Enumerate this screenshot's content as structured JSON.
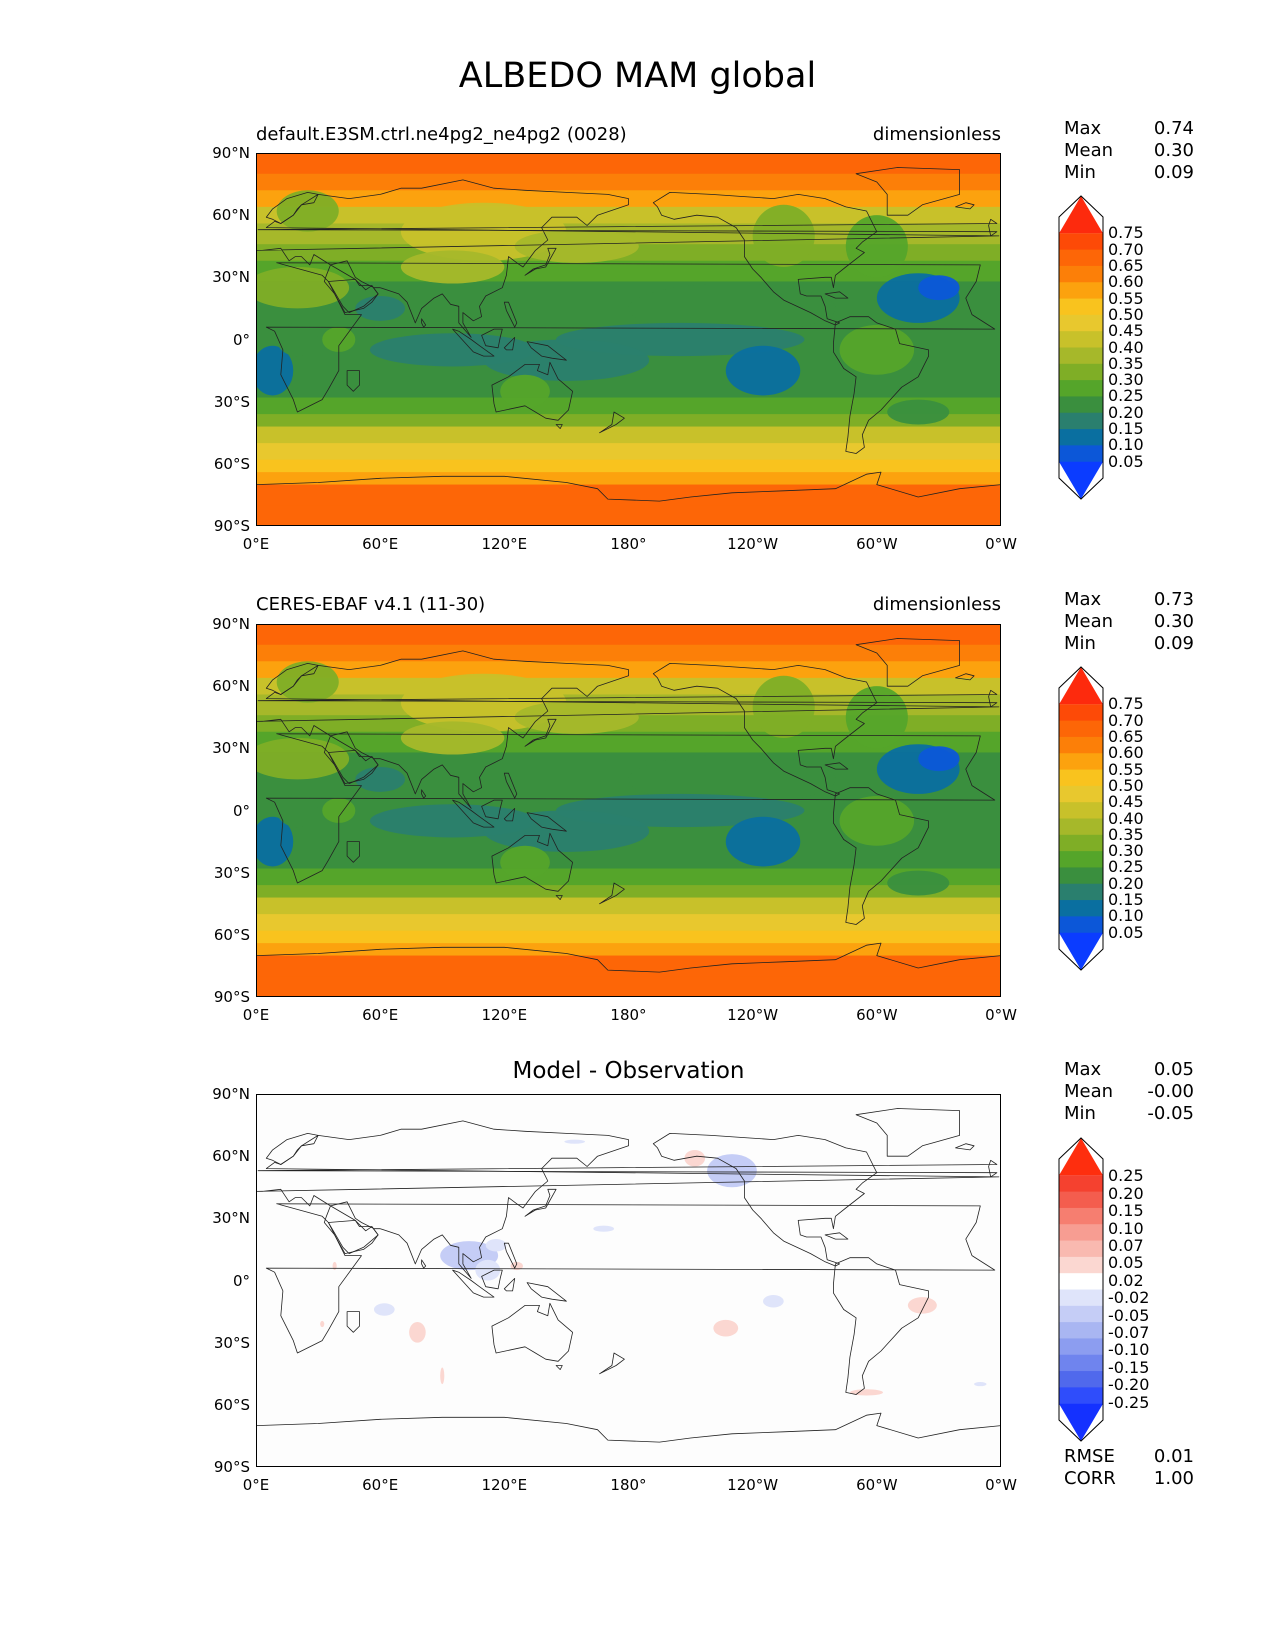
{
  "figure": {
    "title": "ALBEDO MAM global"
  },
  "axes": {
    "yticks": [
      "90°N",
      "60°N",
      "30°N",
      "0°",
      "30°S",
      "60°S",
      "90°S"
    ],
    "xticks": [
      "0°E",
      "60°E",
      "120°E",
      "180°",
      "120°W",
      "60°W",
      "0°W"
    ]
  },
  "panels": [
    {
      "left_title": "default.E3SM.ctrl.ne4pg2_ne4pg2 (0028)",
      "center_title": "",
      "right_title": "dimensionless",
      "stats": [
        {
          "label": "Max",
          "value": "0.74"
        },
        {
          "label": "Mean",
          "value": "0.30"
        },
        {
          "label": "Min",
          "value": "0.09"
        }
      ],
      "colorbar_ticks": [
        "0.75",
        "0.70",
        "0.65",
        "0.60",
        "0.55",
        "0.50",
        "0.45",
        "0.40",
        "0.35",
        "0.30",
        "0.25",
        "0.20",
        "0.15",
        "0.10",
        "0.05"
      ],
      "map_kind": "albedo"
    },
    {
      "left_title": "CERES-EBAF v4.1 (11-30)",
      "center_title": "",
      "right_title": "dimensionless",
      "stats": [
        {
          "label": "Max",
          "value": "0.73"
        },
        {
          "label": "Mean",
          "value": "0.30"
        },
        {
          "label": "Min",
          "value": "0.09"
        }
      ],
      "colorbar_ticks": [
        "0.75",
        "0.70",
        "0.65",
        "0.60",
        "0.55",
        "0.50",
        "0.45",
        "0.40",
        "0.35",
        "0.30",
        "0.25",
        "0.20",
        "0.15",
        "0.10",
        "0.05"
      ],
      "map_kind": "albedo"
    },
    {
      "left_title": "",
      "center_title": "Model - Observation",
      "right_title": "",
      "stats": [
        {
          "label": "Max",
          "value": "0.05"
        },
        {
          "label": "Mean",
          "value": "-0.00"
        },
        {
          "label": "Min",
          "value": "-0.05"
        }
      ],
      "colorbar_ticks": [
        "0.25",
        "0.20",
        "0.15",
        "0.10",
        "0.07",
        "0.05",
        "0.02",
        "-0.02",
        "-0.05",
        "-0.07",
        "-0.10",
        "-0.15",
        "-0.20",
        "-0.25"
      ],
      "map_kind": "diff",
      "bottom_stats": [
        {
          "label": "RMSE",
          "value": "0.01"
        },
        {
          "label": "CORR",
          "value": "1.00"
        }
      ]
    }
  ],
  "colors": {
    "albedo_bar": [
      "#fd2a0d",
      "#fd4a07",
      "#fd6607",
      "#fc7f08",
      "#fca20e",
      "#f9c31e",
      "#e8c82e",
      "#c8c12a",
      "#a6b82a",
      "#7fae26",
      "#55a52a",
      "#3a8f3e",
      "#2a7f6e",
      "#0a6fa0",
      "#0c57d8",
      "#0b3cff"
    ],
    "diff_bar": [
      "#fe2e0e",
      "#f5412f",
      "#f45d4e",
      "#f67e70",
      "#f79d92",
      "#f9b9b0",
      "#fbd7d1",
      "#ffffff",
      "#dfe4fa",
      "#c5cdf6",
      "#a9b6f2",
      "#8c9df0",
      "#6f84ee",
      "#5069ec",
      "#2f4dfb",
      "#1431ff"
    ],
    "coast": "#222222"
  }
}
